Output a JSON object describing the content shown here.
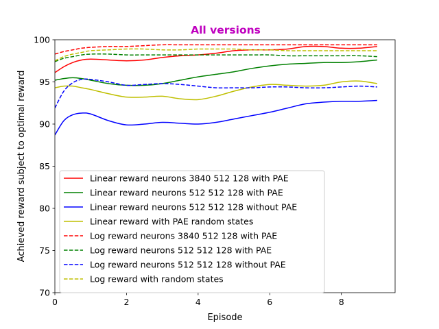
{
  "chart_data": {
    "type": "line",
    "title": "All versions",
    "title_color": "#bf00bf",
    "xlabel": "Episode",
    "ylabel": "Achieved reward subject to optimal reward",
    "xlim": [
      0,
      9.5
    ],
    "ylim": [
      70,
      100
    ],
    "xticks": [
      0,
      2,
      4,
      6,
      8
    ],
    "yticks": [
      70,
      75,
      80,
      85,
      90,
      95,
      100
    ],
    "grid": false,
    "legend_position": "lower-left",
    "series": [
      {
        "name": "Linear reward neurons 3840 512 128 with PAE",
        "color": "#ff0000",
        "dash": "solid",
        "x": [
          0,
          0.25,
          0.5,
          0.75,
          1,
          1.5,
          2,
          2.5,
          3,
          3.5,
          4,
          4.5,
          5,
          5.5,
          6,
          6.5,
          7,
          7.5,
          8,
          8.5,
          9
        ],
        "y": [
          96.1,
          96.8,
          97.3,
          97.6,
          97.7,
          97.6,
          97.5,
          97.6,
          97.9,
          98.1,
          98.2,
          98.4,
          98.7,
          98.8,
          98.8,
          98.9,
          99.2,
          99.2,
          99.0,
          99.0,
          99.2
        ]
      },
      {
        "name": "Linear reward neurons 512 512 128 with PAE",
        "color": "#008000",
        "dash": "solid",
        "x": [
          0,
          0.25,
          0.5,
          0.75,
          1,
          1.5,
          2,
          2.5,
          3,
          3.5,
          4,
          4.5,
          5,
          5.5,
          6,
          6.5,
          7,
          7.5,
          8,
          8.5,
          9
        ],
        "y": [
          95.2,
          95.4,
          95.5,
          95.4,
          95.2,
          94.8,
          94.6,
          94.6,
          94.8,
          95.2,
          95.6,
          95.9,
          96.2,
          96.6,
          96.9,
          97.1,
          97.2,
          97.3,
          97.3,
          97.4,
          97.6
        ]
      },
      {
        "name": "Linear reward neurons 512 512 128 without PAE",
        "color": "#0000ff",
        "dash": "solid",
        "x": [
          0,
          0.25,
          0.5,
          0.75,
          1,
          1.5,
          2,
          2.5,
          3,
          3.5,
          4,
          4.5,
          5,
          5.5,
          6,
          6.5,
          7,
          7.5,
          8,
          8.5,
          9
        ],
        "y": [
          88.7,
          90.4,
          91.1,
          91.3,
          91.2,
          90.4,
          89.9,
          90.0,
          90.2,
          90.1,
          90.0,
          90.2,
          90.6,
          91.0,
          91.4,
          91.9,
          92.4,
          92.6,
          92.7,
          92.7,
          92.8
        ]
      },
      {
        "name": "Linear reward with PAE random states",
        "color": "#bfbf00",
        "dash": "solid",
        "x": [
          0,
          0.25,
          0.5,
          0.75,
          1,
          1.5,
          2,
          2.5,
          3,
          3.5,
          4,
          4.5,
          5,
          5.5,
          6,
          6.5,
          7,
          7.5,
          8,
          8.5,
          9
        ],
        "y": [
          94.3,
          94.5,
          94.5,
          94.3,
          94.1,
          93.6,
          93.2,
          93.2,
          93.3,
          93.0,
          92.9,
          93.3,
          93.9,
          94.4,
          94.7,
          94.6,
          94.5,
          94.6,
          95.0,
          95.1,
          94.8
        ]
      },
      {
        "name": "Log reward neurons 3840 512 128 with PAE",
        "color": "#ff0000",
        "dash": "dashed",
        "x": [
          0,
          0.25,
          0.5,
          0.75,
          1,
          1.5,
          2,
          2.5,
          3,
          3.5,
          4,
          4.5,
          5,
          5.5,
          6,
          6.5,
          7,
          7.5,
          8,
          8.5,
          9
        ],
        "y": [
          98.3,
          98.6,
          98.8,
          99.0,
          99.1,
          99.2,
          99.2,
          99.3,
          99.4,
          99.4,
          99.4,
          99.4,
          99.4,
          99.4,
          99.4,
          99.4,
          99.4,
          99.4,
          99.4,
          99.4,
          99.4
        ]
      },
      {
        "name": "Log reward neurons 512 512 128 with PAE",
        "color": "#008000",
        "dash": "dashed",
        "x": [
          0,
          0.25,
          0.5,
          0.75,
          1,
          1.5,
          2,
          2.5,
          3,
          3.5,
          4,
          4.5,
          5,
          5.5,
          6,
          6.5,
          7,
          7.5,
          8,
          8.5,
          9
        ],
        "y": [
          97.4,
          97.8,
          98.0,
          98.2,
          98.3,
          98.3,
          98.2,
          98.2,
          98.2,
          98.2,
          98.2,
          98.2,
          98.2,
          98.2,
          98.2,
          98.1,
          98.1,
          98.1,
          98.1,
          98.1,
          98.0
        ]
      },
      {
        "name": "Log reward neurons 512 512 128 without PAE",
        "color": "#0000ff",
        "dash": "dashed",
        "x": [
          0,
          0.25,
          0.5,
          0.75,
          1,
          1.5,
          2,
          2.5,
          3,
          3.5,
          4,
          4.5,
          5,
          5.5,
          6,
          6.5,
          7,
          7.5,
          8,
          8.5,
          9
        ],
        "y": [
          91.9,
          93.9,
          94.9,
          95.3,
          95.3,
          95.0,
          94.6,
          94.7,
          94.8,
          94.7,
          94.5,
          94.3,
          94.3,
          94.3,
          94.4,
          94.4,
          94.3,
          94.3,
          94.4,
          94.5,
          94.4
        ]
      },
      {
        "name": "Log reward with random states",
        "color": "#bfbf00",
        "dash": "dashed",
        "x": [
          0,
          0.25,
          0.5,
          0.75,
          1,
          1.5,
          2,
          2.5,
          3,
          3.5,
          4,
          4.5,
          5,
          5.5,
          6,
          6.5,
          7,
          7.5,
          8,
          8.5,
          9
        ],
        "y": [
          97.5,
          98.0,
          98.3,
          98.5,
          98.7,
          98.8,
          98.9,
          98.9,
          98.8,
          98.8,
          98.9,
          98.9,
          98.9,
          98.8,
          98.8,
          98.7,
          98.7,
          98.7,
          98.7,
          98.7,
          98.7
        ]
      }
    ]
  }
}
